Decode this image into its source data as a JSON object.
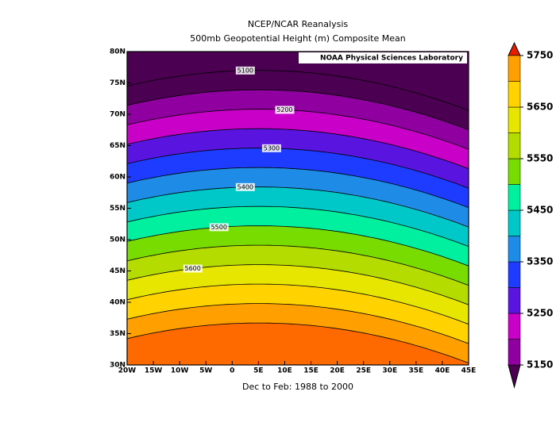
{
  "chart_data": {
    "type": "contour-map",
    "title": "NCEP/NCAR Reanalysis",
    "subtitle": "500mb Geopotential Height (m) Composite Mean",
    "credit": "NOAA Physical Sciences Laboratory",
    "xlabel": "Dec to Feb: 1988 to 2000",
    "xlim": [
      -20,
      45
    ],
    "ylim": [
      30,
      80
    ],
    "xticks": [
      {
        "value": -20,
        "label": "20W"
      },
      {
        "value": -15,
        "label": "15W"
      },
      {
        "value": -10,
        "label": "10W"
      },
      {
        "value": -5,
        "label": "5W"
      },
      0,
      {
        "value": 5,
        "label": "5E"
      },
      {
        "value": 10,
        "label": "10E"
      },
      {
        "value": 15,
        "label": "15E"
      },
      {
        "value": 20,
        "label": "20E"
      },
      {
        "value": 25,
        "label": "25E"
      },
      {
        "value": 30,
        "label": "30E"
      },
      {
        "value": 35,
        "label": "35E"
      },
      {
        "value": 40,
        "label": "40E"
      },
      {
        "value": 45,
        "label": "45E"
      }
    ],
    "yticks": [
      {
        "value": 30,
        "label": "30N"
      },
      {
        "value": 35,
        "label": "35N"
      },
      {
        "value": 40,
        "label": "40N"
      },
      {
        "value": 45,
        "label": "45N"
      },
      {
        "value": 50,
        "label": "50N"
      },
      {
        "value": 55,
        "label": "55N"
      },
      {
        "value": 60,
        "label": "60N"
      },
      {
        "value": 65,
        "label": "65N"
      },
      {
        "value": 70,
        "label": "70N"
      },
      {
        "value": 75,
        "label": "75N"
      },
      {
        "value": 80,
        "label": "80N"
      }
    ],
    "levels": [
      5150,
      5200,
      5250,
      5300,
      5350,
      5400,
      5450,
      5500,
      5550,
      5600,
      5650,
      5700,
      5750
    ],
    "colors": [
      "#4b0052",
      "#9000a0",
      "#c800c8",
      "#5a14e0",
      "#1e3cff",
      "#1e8ce6",
      "#00c8c8",
      "#00f0a0",
      "#78dc00",
      "#b4dc00",
      "#e6e600",
      "#ffd200",
      "#ffa000",
      "#ff6a00",
      "#e61e00"
    ],
    "colorbar_ticks": [
      5150,
      5250,
      5350,
      5450,
      5550,
      5650,
      5750
    ],
    "contour_labels": [
      5100,
      5200,
      5300,
      5400,
      5500,
      5600
    ]
  }
}
